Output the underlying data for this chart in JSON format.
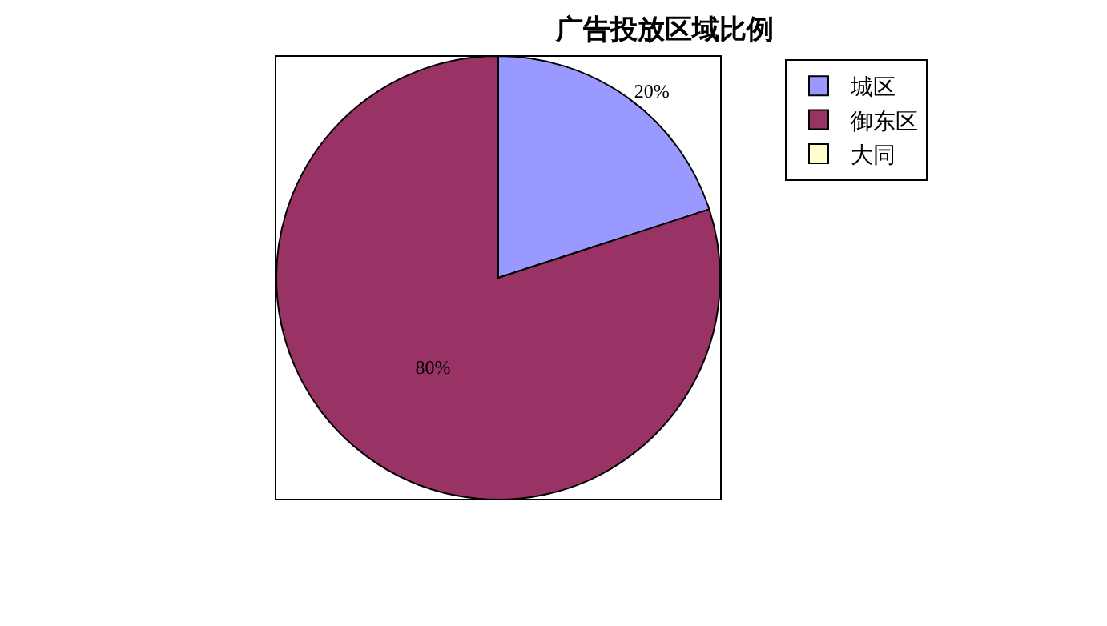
{
  "chart_data": {
    "type": "pie",
    "title": "广告投放区域比例",
    "categories": [
      "城区",
      "御东区",
      "大同"
    ],
    "values": [
      20,
      80,
      0
    ],
    "colors": [
      "#9999ff",
      "#993366",
      "#ffffcc"
    ],
    "value_labels": [
      "20%",
      "80%",
      null
    ],
    "legend": "top right"
  }
}
